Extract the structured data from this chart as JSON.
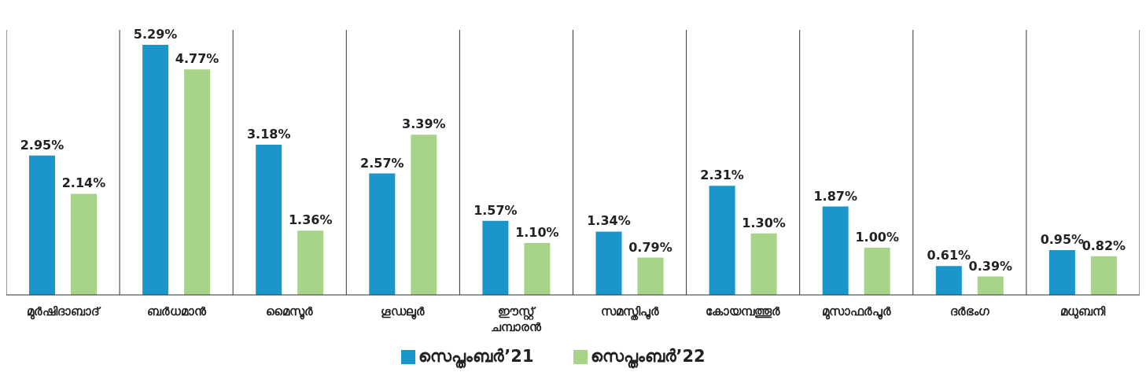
{
  "chart_data": {
    "type": "bar",
    "categories": [
      "മുർഷിദാബാദ്",
      "ബർധമാൻ",
      "മൈസൂർ",
      "ഗൂഡലൂർ",
      "ഈസ്റ്റ് ചമ്പാരൻ",
      "സമസ്തിപൂർ",
      "കോയമ്പത്തൂർ",
      "മുസാഫർപൂർ",
      "ദർഭംഗ",
      "മധുബനി"
    ],
    "series": [
      {
        "name": "സെപ്തംബർ’21",
        "color": "#1a96cb",
        "values": [
          2.95,
          5.29,
          3.18,
          2.57,
          1.57,
          1.34,
          2.31,
          1.87,
          0.61,
          0.95
        ],
        "value_labels": [
          "2.95%",
          "5.29%",
          "3.18%",
          "2.57%",
          "1.57%",
          "1.34%",
          "2.31%",
          "1.87%",
          "0.61%",
          "0.95%"
        ]
      },
      {
        "name": "സെപ്തംബർ’22",
        "color": "#a8d48a",
        "values": [
          2.14,
          4.77,
          1.36,
          3.39,
          1.1,
          0.79,
          1.3,
          1.0,
          0.39,
          0.82
        ],
        "value_labels": [
          "2.14%",
          "4.77%",
          "1.36%",
          "3.39%",
          "1.10%",
          "0.79%",
          "1.30%",
          "1.00%",
          "0.39%",
          "0.82%"
        ]
      }
    ],
    "grid": "x",
    "legend": "bottom"
  }
}
